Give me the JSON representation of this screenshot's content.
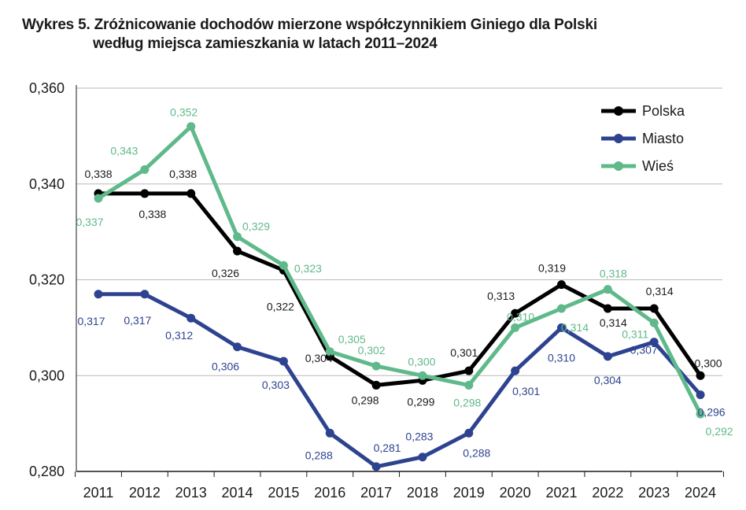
{
  "title": {
    "line1": "Wykres 5. Zróżnicowanie dochodów mierzone współczynnikiem Giniego dla Polski",
    "line2": "według miejsca zamieszkania w latach 2011–2024"
  },
  "chart_data": {
    "type": "line",
    "categories": [
      "2011",
      "2012",
      "2013",
      "2014",
      "2015",
      "2016",
      "2017",
      "2018",
      "2019",
      "2020",
      "2021",
      "2022",
      "2023",
      "2024"
    ],
    "ylim": [
      0.28,
      0.36
    ],
    "yticks": [
      0.28,
      0.3,
      0.32,
      0.34,
      0.36
    ],
    "ytick_labels": [
      "0,280",
      "0,300",
      "0,320",
      "0,340",
      "0,360"
    ],
    "grid": true,
    "legend_position": "top-right",
    "series": [
      {
        "name": "Polska",
        "color": "#000000",
        "values": [
          0.338,
          0.338,
          0.338,
          0.326,
          0.322,
          0.304,
          0.298,
          0.299,
          0.301,
          0.313,
          0.319,
          0.314,
          0.314,
          0.3
        ],
        "labels": [
          "0,338",
          "0,338",
          "0,338",
          "0,326",
          "0,322",
          "0,304",
          "0,298",
          "0,299",
          "0,301",
          "0,313",
          "0,319",
          "0,314",
          "0,314",
          "0,300"
        ]
      },
      {
        "name": "Miasto",
        "color": "#2e4390",
        "values": [
          0.317,
          0.317,
          0.312,
          0.306,
          0.303,
          0.288,
          0.281,
          0.283,
          0.288,
          0.301,
          0.31,
          0.304,
          0.307,
          0.296
        ],
        "labels": [
          "0,317",
          "0,317",
          "0,312",
          "0,306",
          "0,303",
          "0,288",
          "0,281",
          "0,283",
          "0,288",
          "0,301",
          "0,310",
          "0,304",
          "0,307",
          "0,296"
        ]
      },
      {
        "name": "Wieś",
        "color": "#5fb98a",
        "values": [
          0.337,
          0.343,
          0.352,
          0.329,
          0.323,
          0.305,
          0.302,
          0.3,
          0.298,
          0.31,
          0.314,
          0.318,
          0.311,
          0.292
        ],
        "labels": [
          "0,337",
          "0,343",
          "0,352",
          "0,329",
          "0,323",
          "0,305",
          "0,302",
          "0,300",
          "0,298",
          "0,310",
          "0,314",
          "0,318",
          "0,311",
          "0,292"
        ]
      }
    ]
  }
}
